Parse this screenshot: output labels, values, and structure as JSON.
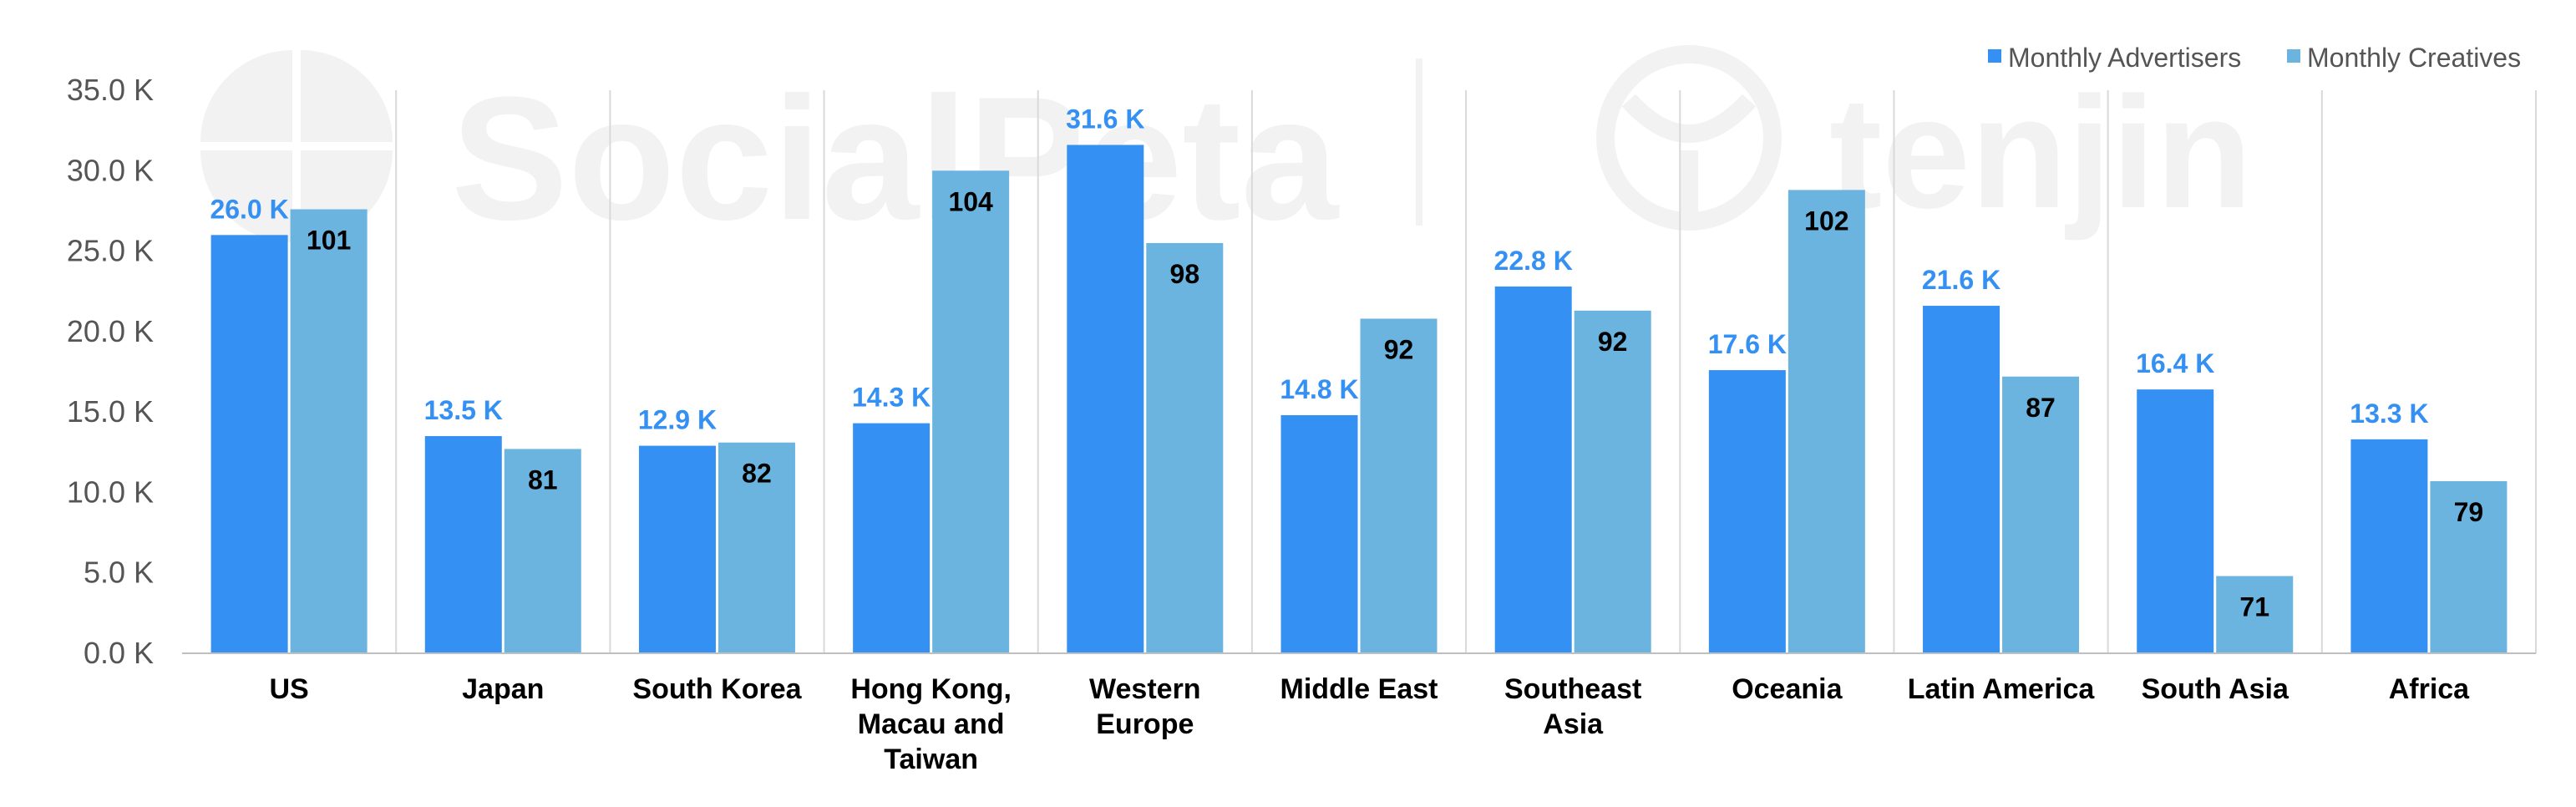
{
  "watermark": {
    "left": "SocialPeta",
    "right": "tenjin"
  },
  "colors": {
    "advertisers": "#3590F3",
    "creatives": "#6CB4E0",
    "advertiser_label": "#3590F3",
    "grid": "#d9d9d9",
    "axis": "#bfbfbf"
  },
  "chart_data": {
    "type": "bar",
    "categories": [
      [
        "US"
      ],
      [
        "Japan"
      ],
      [
        "South Korea"
      ],
      [
        "Hong Kong,",
        "Macau and",
        "Taiwan"
      ],
      [
        "Western",
        "Europe"
      ],
      [
        "Middle East"
      ],
      [
        "Southeast",
        "Asia"
      ],
      [
        "Oceania"
      ],
      [
        "Latin America"
      ],
      [
        "South Asia"
      ],
      [
        "Africa"
      ]
    ],
    "series": [
      {
        "name": "Monthly Advertisers",
        "values": [
          26000,
          13500,
          12900,
          14300,
          31600,
          14800,
          22800,
          17600,
          21600,
          16400,
          13300
        ],
        "labels": [
          "26.0 K",
          "13.5 K",
          "12.9 K",
          "14.3 K",
          "31.6 K",
          "14.8 K",
          "22.8 K",
          "17.6 K",
          "21.6 K",
          "16.4 K",
          "13.3 K"
        ]
      },
      {
        "name": "Monthly Creatives",
        "values": [
          27600,
          12700,
          13100,
          30000,
          25500,
          20800,
          21300,
          28800,
          17200,
          4800,
          10700
        ],
        "labels": [
          "101",
          "81",
          "82",
          "104",
          "98",
          "92",
          "92",
          "102",
          "87",
          "71",
          "79"
        ]
      }
    ],
    "ylim": [
      0,
      35000
    ],
    "yticks": [
      "0.0 K",
      "5.0 K",
      "10.0 K",
      "15.0 K",
      "20.0 K",
      "25.0 K",
      "30.0 K",
      "35.0 K"
    ],
    "grid": "vertical",
    "legend": "top-right"
  }
}
